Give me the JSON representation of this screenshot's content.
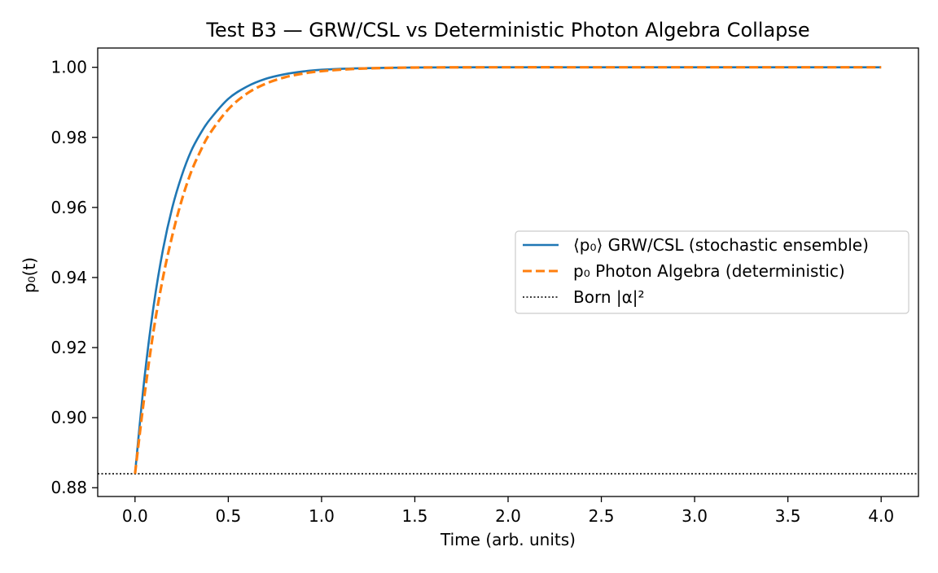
{
  "chart_data": {
    "type": "line",
    "title": "Test B3 — GRW/CSL vs Deterministic Photon Algebra Collapse",
    "xlabel": "Time (arb. units)",
    "ylabel": "p₀(t)",
    "xlim": [
      -0.2,
      4.2
    ],
    "ylim": [
      0.8775,
      1.0055
    ],
    "xticks": [
      0.0,
      0.5,
      1.0,
      1.5,
      2.0,
      2.5,
      3.0,
      3.5,
      4.0
    ],
    "xtick_labels": [
      "0.0",
      "0.5",
      "1.0",
      "1.5",
      "2.0",
      "2.5",
      "3.0",
      "3.5",
      "4.0"
    ],
    "yticks": [
      0.88,
      0.9,
      0.92,
      0.94,
      0.96,
      0.98,
      1.0
    ],
    "ytick_labels": [
      "0.88",
      "0.90",
      "0.92",
      "0.94",
      "0.96",
      "0.98",
      "1.00"
    ],
    "grid": false,
    "legend_position": "center-right",
    "series": [
      {
        "name": "⟨p₀⟩ GRW/CSL (stochastic ensemble)",
        "color": "#1f77b4",
        "style": "solid",
        "x": [
          0.0,
          0.05,
          0.1,
          0.15,
          0.2,
          0.25,
          0.3,
          0.35,
          0.4,
          0.5,
          0.6,
          0.7,
          0.8,
          0.9,
          1.0,
          1.2,
          1.5,
          2.0,
          2.5,
          3.0,
          3.5,
          4.0
        ],
        "y": [
          0.884,
          0.911,
          0.932,
          0.948,
          0.96,
          0.969,
          0.976,
          0.981,
          0.985,
          0.991,
          0.9945,
          0.9967,
          0.998,
          0.9988,
          0.9993,
          0.9997,
          0.99995,
          1.0,
          1.0,
          1.0,
          1.0,
          1.0
        ]
      },
      {
        "name": "p₀ Photon Algebra (deterministic)",
        "color": "#ff7f0e",
        "style": "dashed",
        "x": [
          0.0,
          0.05,
          0.1,
          0.15,
          0.2,
          0.25,
          0.3,
          0.35,
          0.4,
          0.5,
          0.6,
          0.7,
          0.8,
          0.9,
          1.0,
          1.2,
          1.5,
          2.0,
          2.5,
          3.0,
          3.5,
          4.0
        ],
        "y": [
          0.884,
          0.906,
          0.925,
          0.94,
          0.952,
          0.962,
          0.97,
          0.976,
          0.981,
          0.988,
          0.9925,
          0.9953,
          0.9971,
          0.9982,
          0.9989,
          0.9996,
          0.99993,
          1.0,
          1.0,
          1.0,
          1.0,
          1.0
        ]
      }
    ],
    "reference_line": {
      "name": "Born |α|²",
      "y": 0.884,
      "color": "#000000",
      "style": "dotted"
    }
  }
}
